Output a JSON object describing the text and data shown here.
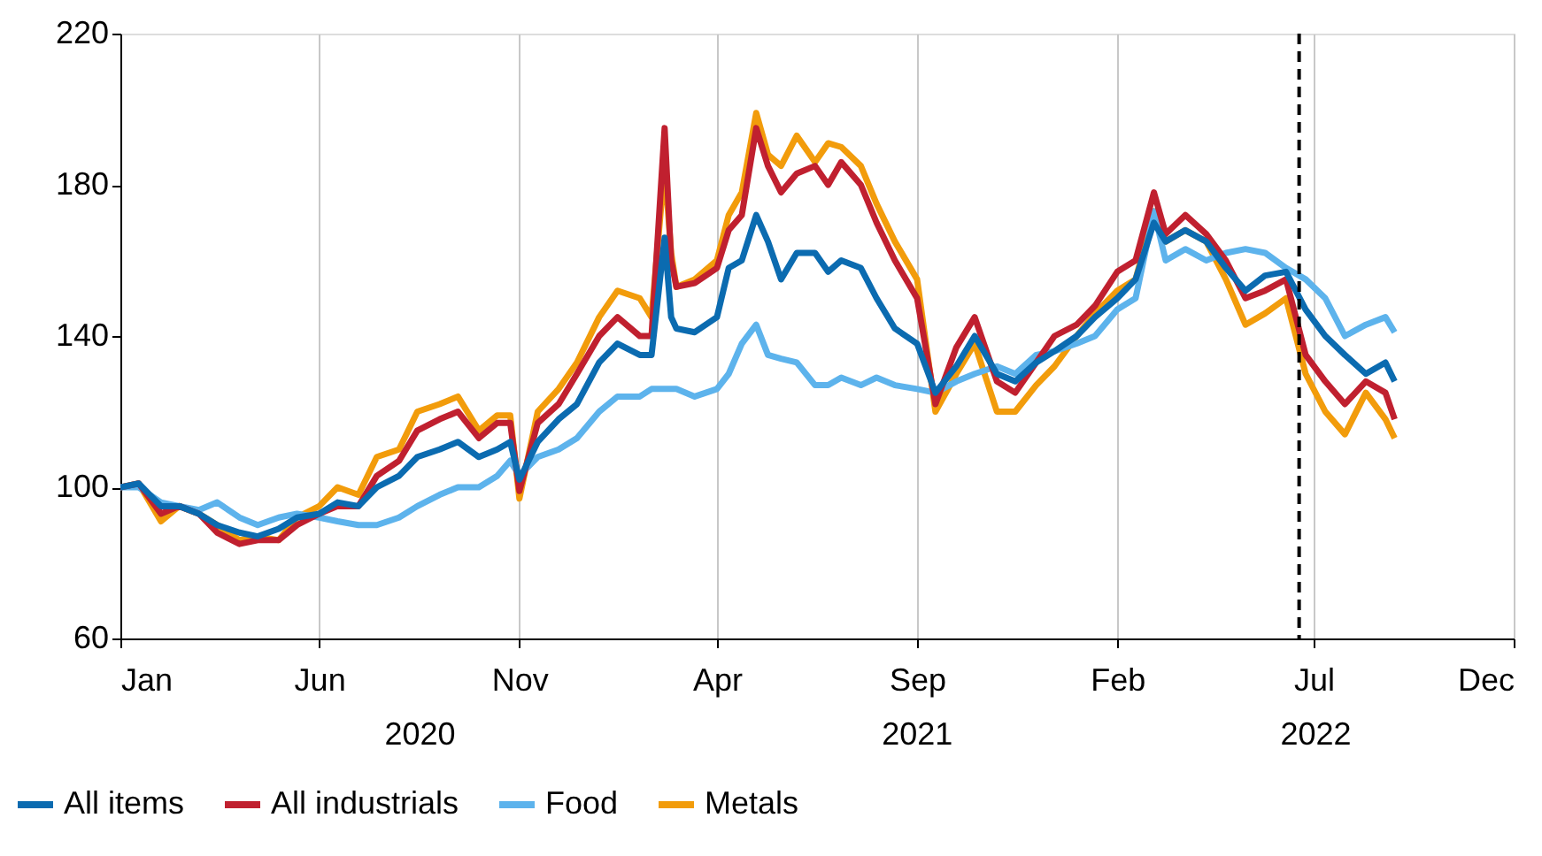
{
  "chart_data": {
    "type": "line",
    "x": [
      "2020-01-01",
      "2020-01-15",
      "2020-02-01",
      "2020-02-15",
      "2020-03-01",
      "2020-03-15",
      "2020-04-01",
      "2020-04-15",
      "2020-05-01",
      "2020-05-15",
      "2020-06-01",
      "2020-06-15",
      "2020-07-01",
      "2020-07-15",
      "2020-08-01",
      "2020-08-15",
      "2020-09-01",
      "2020-09-15",
      "2020-10-01",
      "2020-10-15",
      "2020-10-25",
      "2020-11-01",
      "2020-11-15",
      "2020-12-01",
      "2020-12-15",
      "2021-01-01",
      "2021-01-15",
      "2021-02-01",
      "2021-02-10",
      "2021-02-20",
      "2021-02-25",
      "2021-03-01",
      "2021-03-15",
      "2021-04-01",
      "2021-04-10",
      "2021-04-20",
      "2021-05-01",
      "2021-05-10",
      "2021-05-20",
      "2021-06-01",
      "2021-06-15",
      "2021-06-25",
      "2021-07-05",
      "2021-07-20",
      "2021-08-01",
      "2021-08-15",
      "2021-09-01",
      "2021-09-15",
      "2021-10-01",
      "2021-10-15",
      "2021-11-01",
      "2021-11-15",
      "2021-12-01",
      "2021-12-15",
      "2022-01-01",
      "2022-01-15",
      "2022-02-01",
      "2022-02-15",
      "2022-03-01",
      "2022-03-10",
      "2022-03-25",
      "2022-04-10",
      "2022-04-25",
      "2022-05-10",
      "2022-05-25",
      "2022-06-10",
      "2022-06-25",
      "2022-07-10",
      "2022-07-25",
      "2022-08-10",
      "2022-08-25",
      "2022-09-01"
    ],
    "series": [
      {
        "name": "All items",
        "color": "#0b6bb0",
        "values": [
          100,
          101,
          95,
          95,
          93,
          90,
          88,
          87,
          89,
          92,
          93,
          96,
          95,
          100,
          103,
          108,
          110,
          112,
          108,
          110,
          112,
          102,
          112,
          118,
          122,
          133,
          138,
          135,
          135,
          166,
          145,
          142,
          141,
          145,
          158,
          160,
          172,
          165,
          155,
          162,
          162,
          157,
          160,
          158,
          150,
          142,
          138,
          125,
          132,
          140,
          130,
          128,
          133,
          136,
          140,
          145,
          150,
          155,
          170,
          165,
          168,
          165,
          158,
          152,
          156,
          157,
          147,
          140,
          135,
          130,
          133,
          128
        ]
      },
      {
        "name": "All industrials",
        "color": "#c0202f",
        "values": [
          100,
          101,
          93,
          95,
          93,
          88,
          85,
          86,
          86,
          90,
          93,
          95,
          95,
          103,
          107,
          115,
          118,
          120,
          113,
          117,
          117,
          99,
          117,
          122,
          130,
          140,
          145,
          140,
          140,
          195,
          160,
          153,
          154,
          158,
          168,
          172,
          195,
          185,
          178,
          183,
          185,
          180,
          186,
          180,
          170,
          160,
          150,
          122,
          137,
          145,
          128,
          125,
          133,
          140,
          143,
          148,
          157,
          160,
          178,
          167,
          172,
          167,
          160,
          150,
          152,
          155,
          135,
          128,
          122,
          128,
          125,
          118
        ]
      },
      {
        "name": "Food",
        "color": "#5db3ec",
        "values": [
          100,
          100,
          96,
          95,
          94,
          96,
          92,
          90,
          92,
          93,
          92,
          91,
          90,
          90,
          92,
          95,
          98,
          100,
          100,
          103,
          107,
          103,
          108,
          110,
          113,
          120,
          124,
          124,
          126,
          126,
          126,
          126,
          124,
          126,
          130,
          138,
          143,
          135,
          134,
          133,
          127,
          127,
          129,
          127,
          129,
          127,
          126,
          125,
          128,
          130,
          132,
          130,
          135,
          136,
          138,
          140,
          147,
          150,
          173,
          160,
          163,
          160,
          162,
          163,
          162,
          158,
          155,
          150,
          140,
          143,
          145,
          141
        ]
      },
      {
        "name": "Metals",
        "color": "#f29c0b",
        "values": [
          100,
          101,
          91,
          95,
          93,
          90,
          86,
          87,
          86,
          92,
          95,
          100,
          98,
          108,
          110,
          120,
          122,
          124,
          115,
          119,
          119,
          97,
          120,
          126,
          133,
          145,
          152,
          150,
          145,
          185,
          162,
          153,
          155,
          160,
          172,
          178,
          199,
          188,
          185,
          193,
          186,
          191,
          190,
          185,
          175,
          165,
          155,
          120,
          130,
          138,
          120,
          120,
          127,
          132,
          140,
          146,
          152,
          155,
          173,
          165,
          168,
          165,
          155,
          143,
          146,
          150,
          130,
          120,
          114,
          125,
          118,
          113
        ]
      }
    ],
    "xlim": [
      "2020-01-01",
      "2022-12-01"
    ],
    "xticks": [
      {
        "value": "2020-01-01",
        "label": "Jan"
      },
      {
        "value": "2020-06-01",
        "label": "Jun"
      },
      {
        "value": "2020-11-01",
        "label": "Nov"
      },
      {
        "value": "2021-04-01",
        "label": "Apr"
      },
      {
        "value": "2021-09-01",
        "label": "Sep"
      },
      {
        "value": "2022-02-01",
        "label": "Feb"
      },
      {
        "value": "2022-07-01",
        "label": "Jul"
      },
      {
        "value": "2022-12-01",
        "label": "Dec"
      }
    ],
    "ylim": [
      60,
      220
    ],
    "yticks": [
      60,
      100,
      140,
      180,
      220
    ],
    "grid": "x",
    "legend": "bottom",
    "ref_lines": [
      {
        "axis": "x",
        "value": "2022-06-20",
        "color": "#000000",
        "line_style": "dashed"
      }
    ],
    "annotations": [
      "2020",
      "2021",
      "2022"
    ]
  }
}
